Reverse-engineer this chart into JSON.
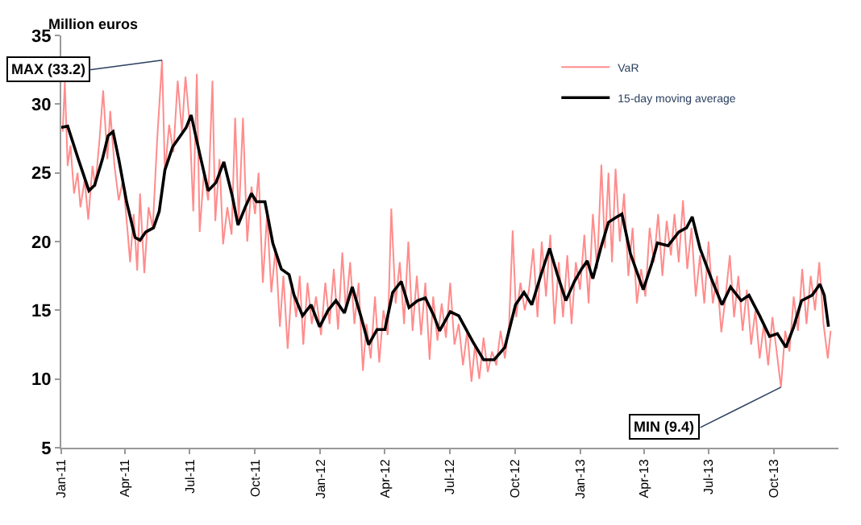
{
  "chart_data": {
    "type": "line",
    "ylabel": "Million euros",
    "ylim": [
      5,
      35
    ],
    "yticks": [
      5,
      10,
      15,
      20,
      25,
      30,
      35
    ],
    "xlim": [
      "2011-01-01",
      "2013-12-31"
    ],
    "xticks": [
      {
        "value": "2011-01-01",
        "label": "Jan-11"
      },
      {
        "value": "2011-04-01",
        "label": "Apr-11"
      },
      {
        "value": "2011-07-01",
        "label": "Jul-11"
      },
      {
        "value": "2011-10-01",
        "label": "Oct-11"
      },
      {
        "value": "2012-01-01",
        "label": "Jan-12"
      },
      {
        "value": "2012-04-01",
        "label": "Apr-12"
      },
      {
        "value": "2012-07-01",
        "label": "Jul-12"
      },
      {
        "value": "2012-10-01",
        "label": "Oct-12"
      },
      {
        "value": "2013-01-01",
        "label": "Jan-13"
      },
      {
        "value": "2013-04-01",
        "label": "Apr-13"
      },
      {
        "value": "2013-07-01",
        "label": "Jul-13"
      },
      {
        "value": "2013-10-01",
        "label": "Oct-13"
      }
    ],
    "legend": "top right",
    "marker": "none",
    "line_style": "solid",
    "annotations": [
      {
        "text": "MAX (33.2)",
        "x": "2011-05-23",
        "y": 33.2
      },
      {
        "text": "MIN (9.4)",
        "x": "2013-10-11",
        "y": 9.4
      }
    ],
    "series": [
      {
        "name": "VaR",
        "color": "#ff8c8c",
        "x": [
          "2011-01-03",
          "2011-01-06",
          "2011-01-10",
          "2011-01-14",
          "2011-01-19",
          "2011-01-24",
          "2011-01-28",
          "2011-02-03",
          "2011-02-08",
          "2011-02-14",
          "2011-02-18",
          "2011-02-24",
          "2011-03-01",
          "2011-03-07",
          "2011-03-11",
          "2011-03-17",
          "2011-03-23",
          "2011-03-29",
          "2011-04-04",
          "2011-04-08",
          "2011-04-13",
          "2011-04-18",
          "2011-04-22",
          "2011-04-28",
          "2011-05-04",
          "2011-05-10",
          "2011-05-16",
          "2011-05-23",
          "2011-05-27",
          "2011-06-02",
          "2011-06-08",
          "2011-06-14",
          "2011-06-20",
          "2011-06-25",
          "2011-07-01",
          "2011-07-06",
          "2011-07-11",
          "2011-07-15",
          "2011-07-21",
          "2011-07-27",
          "2011-08-02",
          "2011-08-06",
          "2011-08-12",
          "2011-08-17",
          "2011-08-23",
          "2011-08-29",
          "2011-09-03",
          "2011-09-08",
          "2011-09-14",
          "2011-09-20",
          "2011-09-26",
          "2011-10-01",
          "2011-10-06",
          "2011-10-12",
          "2011-10-18",
          "2011-10-24",
          "2011-10-30",
          "2011-11-05",
          "2011-11-10",
          "2011-11-16",
          "2011-11-22",
          "2011-11-28",
          "2011-12-03",
          "2011-12-08",
          "2011-12-14",
          "2011-12-20",
          "2011-12-26",
          "2012-01-02",
          "2012-01-08",
          "2012-01-14",
          "2012-01-20",
          "2012-01-26",
          "2012-02-01",
          "2012-02-06",
          "2012-02-12",
          "2012-02-18",
          "2012-02-24",
          "2012-03-01",
          "2012-03-06",
          "2012-03-12",
          "2012-03-18",
          "2012-03-24",
          "2012-03-30",
          "2012-04-05",
          "2012-04-10",
          "2012-04-16",
          "2012-04-22",
          "2012-04-28",
          "2012-05-04",
          "2012-05-10",
          "2012-05-16",
          "2012-05-22",
          "2012-05-28",
          "2012-06-03",
          "2012-06-08",
          "2012-06-14",
          "2012-06-20",
          "2012-06-26",
          "2012-07-02",
          "2012-07-08",
          "2012-07-14",
          "2012-07-20",
          "2012-07-26",
          "2012-08-01",
          "2012-08-06",
          "2012-08-12",
          "2012-08-18",
          "2012-08-24",
          "2012-08-30",
          "2012-09-05",
          "2012-09-11",
          "2012-09-17",
          "2012-09-23",
          "2012-09-28",
          "2012-10-03",
          "2012-10-09",
          "2012-10-15",
          "2012-10-21",
          "2012-10-27",
          "2012-11-02",
          "2012-11-08",
          "2012-11-14",
          "2012-11-20",
          "2012-11-26",
          "2012-12-02",
          "2012-12-08",
          "2012-12-14",
          "2012-12-20",
          "2012-12-26",
          "2013-01-01",
          "2013-01-07",
          "2013-01-13",
          "2013-01-19",
          "2013-01-25",
          "2013-01-31",
          "2013-02-05",
          "2013-02-10",
          "2013-02-15",
          "2013-02-20",
          "2013-02-26",
          "2013-03-04",
          "2013-03-10",
          "2013-03-16",
          "2013-03-22",
          "2013-03-28",
          "2013-04-03",
          "2013-04-09",
          "2013-04-15",
          "2013-04-21",
          "2013-04-27",
          "2013-05-03",
          "2013-05-09",
          "2013-05-14",
          "2013-05-20",
          "2013-05-26",
          "2013-06-01",
          "2013-06-07",
          "2013-06-13",
          "2013-06-19",
          "2013-06-25",
          "2013-07-01",
          "2013-07-07",
          "2013-07-13",
          "2013-07-19",
          "2013-07-25",
          "2013-07-31",
          "2013-08-06",
          "2013-08-12",
          "2013-08-18",
          "2013-08-24",
          "2013-08-30",
          "2013-09-05",
          "2013-09-11",
          "2013-09-17",
          "2013-09-23",
          "2013-09-29",
          "2013-10-05",
          "2013-10-11",
          "2013-10-17",
          "2013-10-23",
          "2013-10-29",
          "2013-11-04",
          "2013-11-10",
          "2013-11-16",
          "2013-11-22",
          "2013-11-28",
          "2013-12-04",
          "2013-12-10",
          "2013-12-16",
          "2013-12-20"
        ],
        "values": [
          28.0,
          31.6,
          25.5,
          27.0,
          23.5,
          25.0,
          22.5,
          24.5,
          21.6,
          25.5,
          24.0,
          27.5,
          31.0,
          26.0,
          29.5,
          25.5,
          23.0,
          24.5,
          21.0,
          18.5,
          22.0,
          17.9,
          23.5,
          17.7,
          22.5,
          21.0,
          27.3,
          33.2,
          25.0,
          28.5,
          26.5,
          31.7,
          28.0,
          32.0,
          28.5,
          22.2,
          32.2,
          20.7,
          25.0,
          23.0,
          31.7,
          21.5,
          26.0,
          19.8,
          22.5,
          20.5,
          29.0,
          21.5,
          29.0,
          20.0,
          24.0,
          22.0,
          25.0,
          17.0,
          22.0,
          16.3,
          19.5,
          13.8,
          17.5,
          12.2,
          17.0,
          14.5,
          17.5,
          12.5,
          17.0,
          14.0,
          16.0,
          13.2,
          17.0,
          14.0,
          18.0,
          13.6,
          19.2,
          15.0,
          18.5,
          14.0,
          17.0,
          10.6,
          14.0,
          11.5,
          16.0,
          11.2,
          15.0,
          13.2,
          22.4,
          15.5,
          18.5,
          14.0,
          20.0,
          13.5,
          17.5,
          13.2,
          17.0,
          11.4,
          16.0,
          12.8,
          15.5,
          13.0,
          17.0,
          12.5,
          14.0,
          11.0,
          13.5,
          9.8,
          12.5,
          10.0,
          13.0,
          10.5,
          12.0,
          11.0,
          13.5,
          11.5,
          14.0,
          20.8,
          14.5,
          17.0,
          15.0,
          16.5,
          19.5,
          14.5,
          20.0,
          16.0,
          20.5,
          14.0,
          18.5,
          14.5,
          19.0,
          14.0,
          18.5,
          16.5,
          20.5,
          15.5,
          22.0,
          18.0,
          25.6,
          19.5,
          25.0,
          18.5,
          25.3,
          20.0,
          23.5,
          17.5,
          21.0,
          15.5,
          18.0,
          16.0,
          21.0,
          18.5,
          22.0,
          17.5,
          21.5,
          19.0,
          22.0,
          18.5,
          23.0,
          18.0,
          21.0,
          16.0,
          19.0,
          15.5,
          20.0,
          15.5,
          17.5,
          13.4,
          16.0,
          19.0,
          14.5,
          17.5,
          13.5,
          16.5,
          12.5,
          15.0,
          11.5,
          14.0,
          11.0,
          14.5,
          12.0,
          9.4,
          13.5,
          12.0,
          16.0,
          13.5,
          18.0,
          14.0,
          17.5,
          15.0,
          18.5,
          14.0,
          11.5,
          13.5
        ]
      },
      {
        "name": "15-day moving average",
        "color": "#000000",
        "x": [
          "2011-01-01",
          "2011-01-10",
          "2011-01-25",
          "2011-02-09",
          "2011-02-17",
          "2011-02-28",
          "2011-03-08",
          "2011-03-15",
          "2011-03-23",
          "2011-04-03",
          "2011-04-15",
          "2011-04-22",
          "2011-04-30",
          "2011-05-11",
          "2011-05-19",
          "2011-05-27",
          "2011-06-07",
          "2011-06-18",
          "2011-06-26",
          "2011-07-03",
          "2011-07-15",
          "2011-07-27",
          "2011-08-07",
          "2011-08-18",
          "2011-08-30",
          "2011-09-07",
          "2011-09-18",
          "2011-09-26",
          "2011-10-03",
          "2011-10-15",
          "2011-10-26",
          "2011-11-07",
          "2011-11-18",
          "2011-11-25",
          "2011-12-07",
          "2011-12-19",
          "2011-12-31",
          "2012-01-12",
          "2012-01-23",
          "2012-02-04",
          "2012-02-15",
          "2012-02-27",
          "2012-03-09",
          "2012-03-21",
          "2012-04-01",
          "2012-04-12",
          "2012-04-24",
          "2012-05-05",
          "2012-05-17",
          "2012-05-28",
          "2012-06-09",
          "2012-06-17",
          "2012-07-02",
          "2012-07-14",
          "2012-08-03",
          "2012-08-18",
          "2012-09-02",
          "2012-09-17",
          "2012-10-02",
          "2012-10-14",
          "2012-10-25",
          "2012-11-07",
          "2012-11-19",
          "2012-11-30",
          "2012-12-12",
          "2012-12-24",
          "2013-01-03",
          "2013-01-11",
          "2013-01-19",
          "2013-01-30",
          "2013-02-10",
          "2013-02-22",
          "2013-03-01",
          "2013-03-13",
          "2013-03-31",
          "2013-04-12",
          "2013-04-20",
          "2013-05-05",
          "2013-05-20",
          "2013-05-31",
          "2013-06-08",
          "2013-06-19",
          "2013-07-05",
          "2013-07-20",
          "2013-08-01",
          "2013-08-16",
          "2013-08-27",
          "2013-09-11",
          "2013-09-25",
          "2013-10-06",
          "2013-10-18",
          "2013-10-29",
          "2013-11-09",
          "2013-11-24",
          "2013-12-05",
          "2013-12-11",
          "2013-12-17"
        ],
        "values": [
          28.3,
          28.4,
          26.0,
          23.7,
          24.1,
          26.0,
          27.7,
          28.0,
          26.0,
          22.9,
          20.3,
          20.1,
          20.7,
          21.0,
          22.2,
          25.2,
          26.9,
          27.7,
          28.3,
          29.2,
          26.4,
          23.7,
          24.3,
          25.8,
          23.3,
          21.2,
          22.6,
          23.5,
          22.9,
          22.9,
          19.9,
          18.0,
          17.6,
          16.1,
          14.6,
          15.4,
          13.8,
          15.0,
          15.7,
          14.8,
          16.7,
          14.6,
          12.5,
          13.6,
          13.6,
          16.3,
          17.1,
          15.2,
          15.7,
          15.9,
          14.6,
          13.5,
          14.9,
          14.6,
          12.7,
          11.4,
          11.4,
          12.3,
          15.4,
          16.3,
          15.4,
          17.6,
          19.5,
          17.6,
          15.7,
          17.1,
          18.0,
          18.6,
          17.3,
          19.5,
          21.4,
          21.8,
          22.0,
          19.1,
          16.5,
          18.4,
          19.9,
          19.7,
          20.7,
          21.0,
          21.8,
          19.5,
          17.3,
          15.4,
          16.7,
          15.7,
          16.1,
          14.6,
          13.1,
          13.3,
          12.3,
          13.8,
          15.7,
          16.1,
          16.9,
          16.1,
          13.8
        ]
      }
    ]
  }
}
